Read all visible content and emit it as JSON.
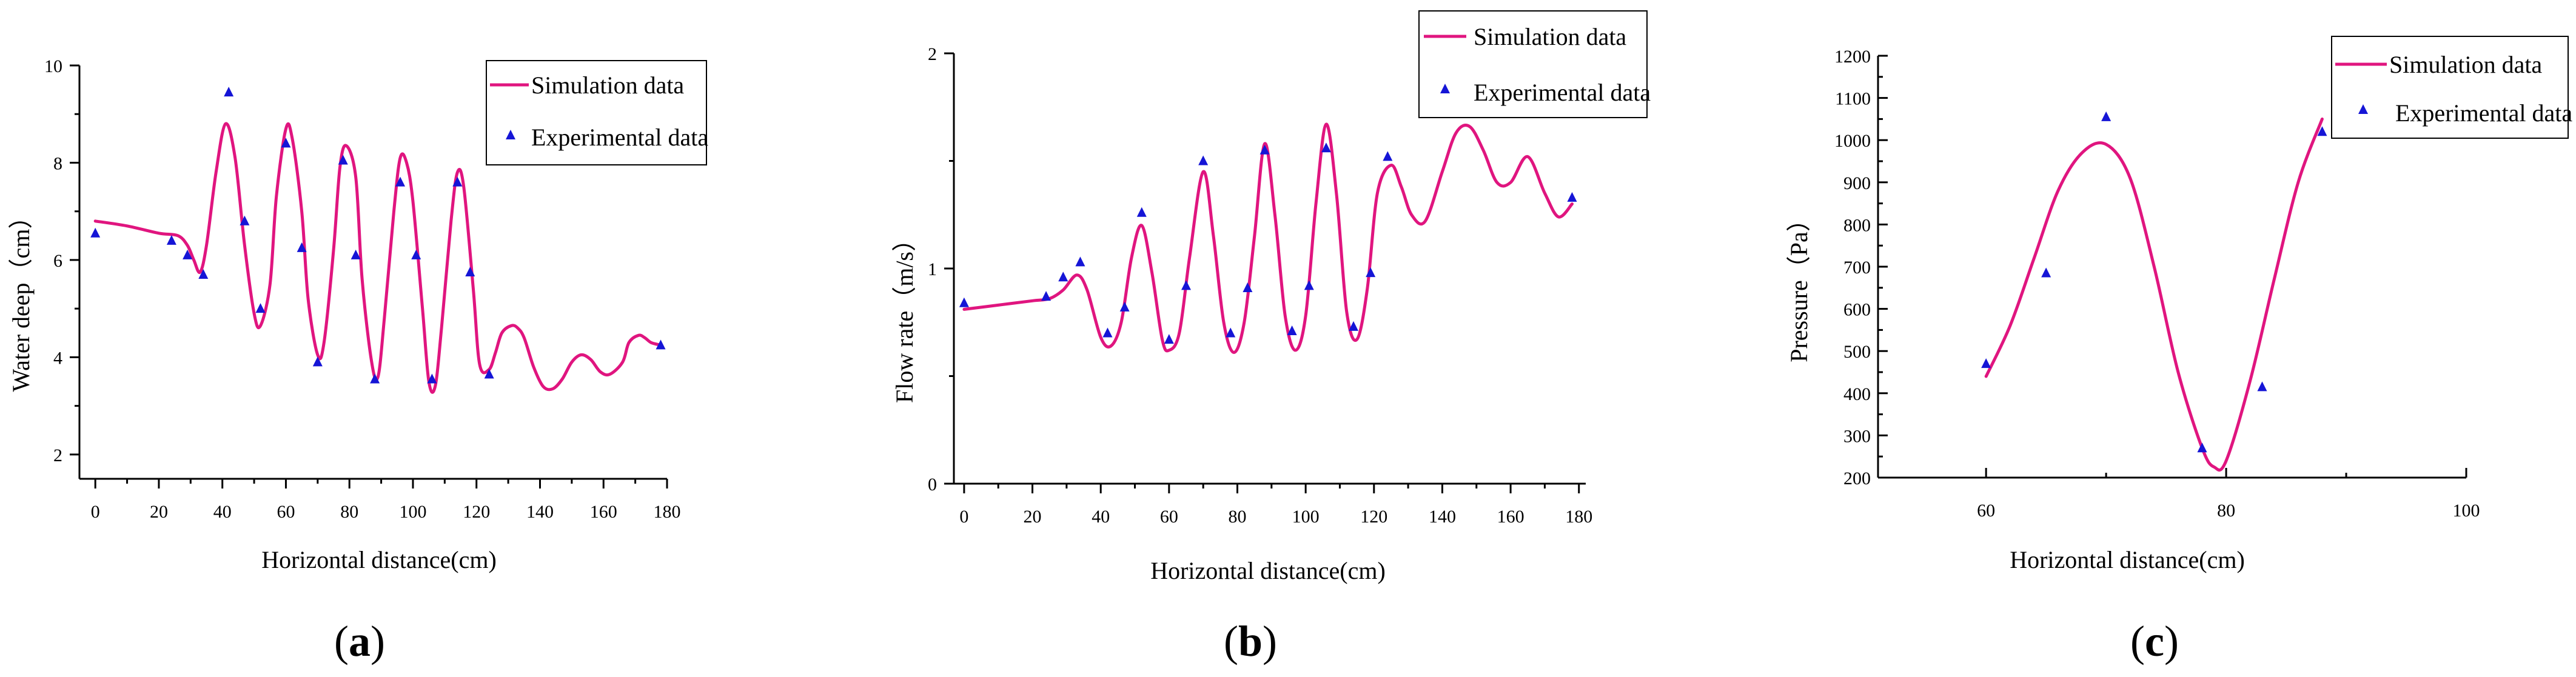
{
  "colors": {
    "simulation": "#e0157f",
    "experimental": "#1515d6",
    "axis": "#000000"
  },
  "legend": {
    "simulation_label": "Simulation data",
    "experimental_label": "Experimental data"
  },
  "chart_data": [
    {
      "id": "a",
      "type": "line",
      "panel_label": "a",
      "xlabel": "Horizontal distance(cm)",
      "ylabel": "Water deep（cm）",
      "xlim": [
        -5,
        180
      ],
      "ylim": [
        1.5,
        10
      ],
      "xticks": [
        0,
        20,
        40,
        60,
        80,
        100,
        120,
        140,
        160,
        180
      ],
      "yticks": [
        2,
        4,
        6,
        8,
        10
      ],
      "legend_position": "top-right",
      "series": [
        {
          "name": "Simulation data",
          "x": [
            0,
            10,
            20,
            26,
            29,
            31,
            33,
            35,
            38,
            41,
            44,
            47,
            50,
            52,
            55,
            57,
            60,
            62,
            65,
            67,
            70,
            72,
            75,
            77,
            79,
            82,
            84,
            87,
            89,
            91,
            94,
            96,
            98,
            100,
            103,
            105,
            107,
            109,
            112,
            114,
            116,
            119,
            121,
            124,
            126,
            128,
            131,
            133,
            135,
            138,
            141,
            144,
            147,
            150,
            153,
            156,
            159,
            162,
            166,
            168,
            171,
            173,
            175,
            178
          ],
          "y": [
            6.8,
            6.7,
            6.55,
            6.5,
            6.3,
            6.0,
            5.75,
            6.3,
            7.8,
            8.8,
            8.1,
            6.3,
            4.9,
            4.65,
            5.5,
            7.3,
            8.7,
            8.5,
            7.0,
            5.2,
            4.05,
            4.3,
            6.2,
            7.9,
            8.35,
            7.7,
            5.6,
            3.9,
            3.6,
            4.8,
            7.0,
            8.1,
            8.0,
            7.2,
            5.0,
            3.5,
            3.4,
            4.6,
            6.8,
            7.8,
            7.5,
            5.4,
            3.85,
            3.75,
            4.1,
            4.5,
            4.65,
            4.6,
            4.4,
            3.8,
            3.4,
            3.35,
            3.55,
            3.9,
            4.05,
            3.95,
            3.7,
            3.65,
            3.9,
            4.3,
            4.45,
            4.4,
            4.3,
            4.25
          ]
        },
        {
          "name": "Experimental data",
          "x": [
            0,
            24,
            29,
            34,
            42,
            47,
            52,
            60,
            65,
            70,
            78,
            82,
            88,
            96,
            101,
            106,
            114,
            118,
            124,
            178
          ],
          "y": [
            6.55,
            6.4,
            6.1,
            5.7,
            9.45,
            6.8,
            5.0,
            8.4,
            6.25,
            3.9,
            8.05,
            6.1,
            3.55,
            7.6,
            6.1,
            3.55,
            7.6,
            5.75,
            3.65,
            4.25
          ]
        }
      ]
    },
    {
      "id": "b",
      "type": "line",
      "panel_label": "b",
      "xlabel": "Horizontal distance(cm)",
      "ylabel": "Flow rate（m/s）",
      "xlim": [
        -3,
        182
      ],
      "ylim": [
        0,
        2
      ],
      "xticks": [
        0,
        20,
        40,
        60,
        80,
        100,
        120,
        140,
        160,
        180
      ],
      "yticks": [
        0,
        1,
        2
      ],
      "legend_position": "top-right",
      "series": [
        {
          "name": "Simulation data",
          "x": [
            0,
            10,
            20,
            25,
            29,
            33,
            36,
            40,
            43,
            46,
            49,
            52,
            55,
            58,
            60,
            63,
            66,
            70,
            73,
            76,
            79,
            82,
            85,
            88,
            91,
            94,
            97,
            100,
            103,
            106,
            109,
            112,
            115,
            118,
            121,
            125,
            128,
            131,
            135,
            140,
            144,
            148,
            152,
            156,
            160,
            165,
            170,
            174,
            178
          ],
          "y": [
            0.81,
            0.83,
            0.85,
            0.86,
            0.9,
            0.97,
            0.9,
            0.68,
            0.64,
            0.75,
            1.05,
            1.2,
            0.98,
            0.67,
            0.62,
            0.7,
            1.05,
            1.45,
            1.15,
            0.75,
            0.61,
            0.75,
            1.15,
            1.58,
            1.25,
            0.78,
            0.62,
            0.78,
            1.3,
            1.67,
            1.35,
            0.8,
            0.67,
            0.9,
            1.35,
            1.48,
            1.38,
            1.25,
            1.22,
            1.45,
            1.63,
            1.66,
            1.55,
            1.4,
            1.4,
            1.52,
            1.35,
            1.24,
            1.3
          ]
        },
        {
          "name": "Experimental data",
          "x": [
            0,
            24,
            29,
            34,
            42,
            47,
            52,
            60,
            65,
            70,
            78,
            83,
            88,
            96,
            101,
            106,
            114,
            119,
            124,
            178
          ],
          "y": [
            0.84,
            0.87,
            0.96,
            1.03,
            0.7,
            0.82,
            1.26,
            0.67,
            0.92,
            1.5,
            0.7,
            0.91,
            1.55,
            0.71,
            0.92,
            1.56,
            0.73,
            0.98,
            1.52,
            1.33
          ]
        }
      ]
    },
    {
      "id": "c",
      "type": "line",
      "panel_label": "c",
      "xlabel": "Horizontal distance(cm)",
      "ylabel": "Pressure（Pa）",
      "xlim": [
        51,
        100
      ],
      "ylim": [
        200,
        1200
      ],
      "xticks": [
        60,
        80,
        100
      ],
      "yticks": [
        200,
        300,
        400,
        500,
        600,
        700,
        800,
        900,
        1000,
        1100,
        1200
      ],
      "legend_position": "top-right",
      "series": [
        {
          "name": "Simulation data",
          "x": [
            60,
            62,
            64,
            66,
            68,
            70,
            72,
            74,
            76,
            78,
            79,
            80,
            82,
            84,
            86,
            88
          ],
          "y": [
            440,
            560,
            720,
            880,
            970,
            990,
            910,
            700,
            450,
            270,
            225,
            240,
            430,
            670,
            900,
            1050
          ]
        },
        {
          "name": "Experimental data",
          "x": [
            60,
            65,
            70,
            78,
            83,
            88
          ],
          "y": [
            470,
            685,
            1055,
            270,
            415,
            1020
          ]
        }
      ]
    }
  ]
}
